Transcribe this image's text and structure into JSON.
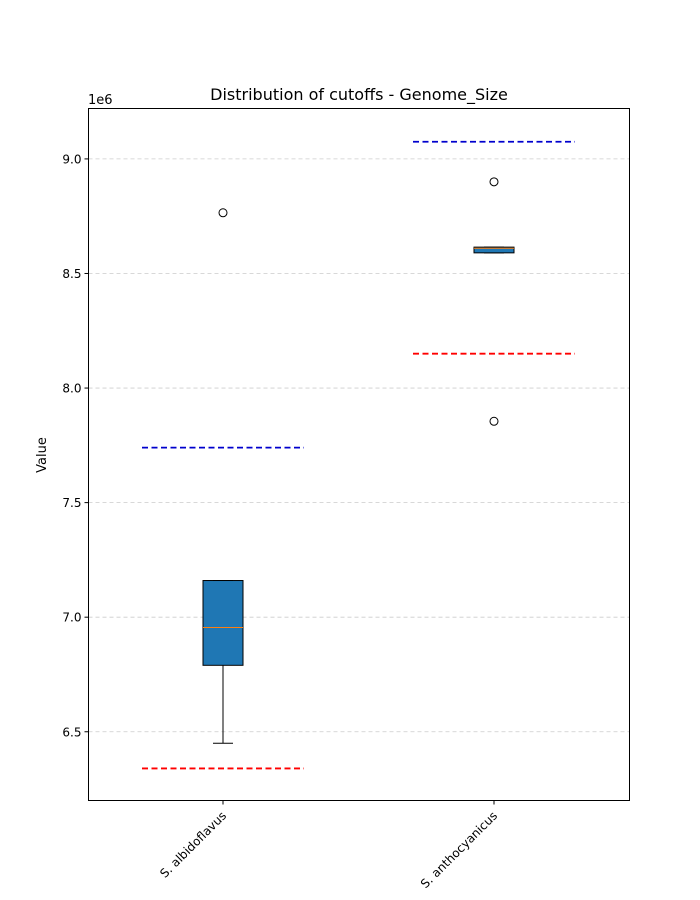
{
  "chart_data": {
    "type": "box",
    "title": "Distribution of cutoffs - Genome_Size",
    "ylabel": "Value",
    "xlabel": "",
    "offset_label": "1e6",
    "scale": 1000000,
    "ylim": [
      6.2,
      9.22
    ],
    "yticks": [
      6.5,
      7.0,
      7.5,
      8.0,
      8.5,
      9.0
    ],
    "ytick_labels": [
      "6.5",
      "7.0",
      "7.5",
      "8.0",
      "8.5",
      "9.0"
    ],
    "grid": "y-dashed",
    "categories": [
      "S. albidoflavus",
      "S. anthocyanicus"
    ],
    "boxes": [
      {
        "name": "S. albidoflavus",
        "whisker_low": 6.45,
        "q1": 6.79,
        "median": 6.955,
        "q3": 7.16,
        "whisker_high": 7.16,
        "outliers": [
          8.765
        ],
        "lower_cutoff": 6.34,
        "upper_cutoff": 7.74
      },
      {
        "name": "S. anthocyanicus",
        "whisker_low": 8.59,
        "q1": 8.59,
        "median": 8.61,
        "q3": 8.615,
        "whisker_high": 8.615,
        "outliers": [
          8.9,
          7.855
        ],
        "lower_cutoff": 8.15,
        "upper_cutoff": 9.075
      }
    ],
    "colors": {
      "box_fill": "#1f77b4",
      "median": "#ff7f0e",
      "lower_cutoff": "#ff0000",
      "upper_cutoff": "#0000cd",
      "grid": "#cccccc"
    }
  }
}
